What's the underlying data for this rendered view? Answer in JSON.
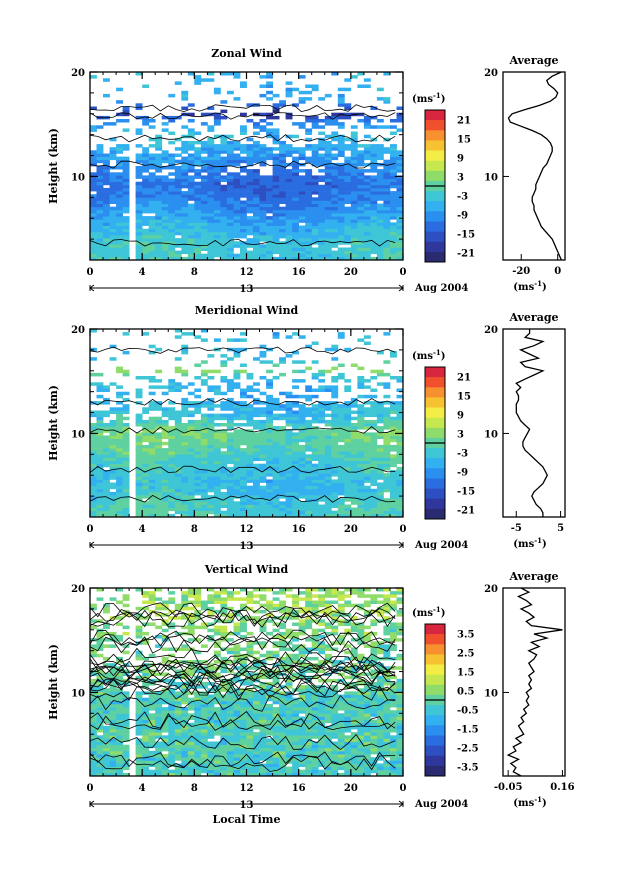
{
  "colorbar_wind": {
    "unit": "(ms",
    "unit_exp": "-1",
    "unit_close": ")",
    "ticks": [
      "21",
      "15",
      "9",
      "3",
      "-3",
      "-9",
      "-15",
      "-21"
    ],
    "colors": [
      "#d7263d",
      "#f0502c",
      "#f7902f",
      "#f7c232",
      "#f4ed45",
      "#c6e84e",
      "#8fdc6a",
      "#5fd1a0",
      "#3fc6d6",
      "#33b0f0",
      "#2b8ff0",
      "#2a6de0",
      "#2e4fc2",
      "#2f379c",
      "#2a2a70"
    ]
  },
  "colorbar_vertical": {
    "unit": "(ms",
    "unit_exp": "-1",
    "unit_close": ")",
    "ticks": [
      "3.5",
      "2.5",
      "1.5",
      "0.5",
      "-0.5",
      "-1.5",
      "-2.5",
      "-3.5"
    ],
    "colors": [
      "#d7263d",
      "#f0502c",
      "#f7902f",
      "#f7c232",
      "#f4ed45",
      "#c6e84e",
      "#8fdc6a",
      "#5fd1a0",
      "#3fc6d6",
      "#33b0f0",
      "#2b8ff0",
      "#2a6de0",
      "#2e4fc2",
      "#2f379c",
      "#2a2a70"
    ]
  },
  "chart_data": [
    {
      "type": "heatmap",
      "title": "Zonal Wind",
      "ylabel": "Height (km)",
      "ylim": [
        2,
        20
      ],
      "yticks": [
        "20",
        "10"
      ],
      "xticks": [
        "0",
        "4",
        "8",
        "12",
        "16",
        "20",
        "0"
      ],
      "x_sub_label": "13",
      "date_label": "Aug 2004",
      "xlim": [
        0,
        24
      ],
      "gap_hour": 3,
      "profile_by_height": [
        {
          "h": 3,
          "v": -3
        },
        {
          "h": 4,
          "v": -4
        },
        {
          "h": 5,
          "v": -6
        },
        {
          "h": 6,
          "v": -8
        },
        {
          "h": 7,
          "v": -10
        },
        {
          "h": 8,
          "v": -12
        },
        {
          "h": 9,
          "v": -13
        },
        {
          "h": 10,
          "v": -12
        },
        {
          "h": 11,
          "v": -10
        },
        {
          "h": 12,
          "v": -8
        },
        {
          "h": 13,
          "v": -6
        },
        {
          "h": 14,
          "v": -5
        },
        {
          "h": 15,
          "v": -10
        },
        {
          "h": 16,
          "v": -20
        },
        {
          "h": 17,
          "v": -8
        },
        {
          "h": 18,
          "v": -6
        }
      ]
    },
    {
      "type": "line",
      "title": "Average",
      "panel": "zonal",
      "ylim": [
        2,
        20
      ],
      "yticks": [
        "20",
        "10"
      ],
      "xticks": [
        "-20",
        "0"
      ],
      "xlim": [
        -30,
        4
      ],
      "xunit": "(ms",
      "xunit_exp": "-1",
      "x": [
        2,
        1,
        0,
        -1,
        -2,
        -3,
        -5,
        -7,
        -9,
        -10,
        -11,
        -12,
        -13,
        -13,
        -14,
        -14,
        -13,
        -12,
        -12,
        -11,
        -10,
        -9,
        -8,
        -6,
        -5,
        -4,
        -3,
        -3,
        -4,
        -6,
        -9,
        -14,
        -20,
        -26,
        -27,
        -25,
        -18,
        -10,
        -4,
        -1,
        0,
        -2,
        -5,
        -6,
        -3,
        2
      ],
      "y": [
        2,
        2.4,
        2.8,
        3.2,
        3.6,
        4,
        4.4,
        4.8,
        5.2,
        5.6,
        6,
        6.4,
        6.8,
        7.2,
        7.6,
        8,
        8.4,
        8.8,
        9.2,
        9.6,
        10,
        10.4,
        10.8,
        11.2,
        11.6,
        12,
        12.4,
        12.8,
        13.2,
        13.6,
        14,
        14.4,
        14.8,
        15.2,
        15.6,
        16,
        16.4,
        16.8,
        17.2,
        17.6,
        18,
        18.4,
        18.8,
        19.2,
        19.6,
        20
      ]
    },
    {
      "type": "heatmap",
      "title": "Meridional Wind",
      "ylabel": "Height (km)",
      "ylim": [
        2,
        20
      ],
      "yticks": [
        "20",
        "10"
      ],
      "xticks": [
        "0",
        "4",
        "8",
        "12",
        "16",
        "20",
        "0"
      ],
      "x_sub_label": "13",
      "date_label": "Aug 2004",
      "xlim": [
        0,
        24
      ],
      "gap_hour": 3,
      "profile_by_height": [
        {
          "h": 3,
          "v": -2
        },
        {
          "h": 4,
          "v": -4
        },
        {
          "h": 5,
          "v": -5
        },
        {
          "h": 6,
          "v": -4
        },
        {
          "h": 7,
          "v": -3
        },
        {
          "h": 8,
          "v": -1
        },
        {
          "h": 9,
          "v": 0
        },
        {
          "h": 10,
          "v": 1
        },
        {
          "h": 11,
          "v": -3
        },
        {
          "h": 12,
          "v": -5
        },
        {
          "h": 13,
          "v": -6
        },
        {
          "h": 14,
          "v": -6
        },
        {
          "h": 15,
          "v": -5
        },
        {
          "h": 16,
          "v": 3
        },
        {
          "h": 17,
          "v": -4
        },
        {
          "h": 18,
          "v": -5
        }
      ]
    },
    {
      "type": "line",
      "title": "Average",
      "panel": "meridional",
      "ylim": [
        2,
        20
      ],
      "yticks": [
        "20",
        "10"
      ],
      "xticks": [
        "-5",
        "5"
      ],
      "xlim": [
        -8,
        6
      ],
      "xunit": "(ms",
      "xunit_exp": "-1",
      "x": [
        1,
        1,
        0.5,
        -0.5,
        -1,
        -1.5,
        -1,
        0,
        1,
        1.5,
        2,
        1.5,
        1,
        0,
        -1,
        -2,
        -3,
        -3.5,
        -3.5,
        -3,
        -2.5,
        -2,
        -3,
        -4,
        -4.5,
        -5,
        -5,
        -5,
        -4.5,
        -4.5,
        -5,
        -4,
        -5,
        -3,
        -1,
        1,
        -3,
        -4,
        0,
        -2,
        -4,
        -1,
        1,
        -3,
        -2,
        -2
      ],
      "y": [
        2,
        2.4,
        2.8,
        3.2,
        3.6,
        4,
        4.4,
        4.8,
        5.2,
        5.6,
        6,
        6.4,
        6.8,
        7.2,
        7.6,
        8,
        8.4,
        8.8,
        9.2,
        9.6,
        10,
        10.4,
        10.8,
        11.2,
        11.6,
        12,
        12.4,
        12.8,
        13.2,
        13.6,
        14,
        14.4,
        14.8,
        15.2,
        15.6,
        16,
        16.4,
        16.8,
        17.2,
        17.6,
        18,
        18.4,
        18.8,
        19.2,
        19.6,
        20
      ]
    },
    {
      "type": "heatmap",
      "title": "Vertical Wind",
      "ylabel": "Height (km)",
      "xlabel": "Local Time",
      "ylim": [
        2,
        20
      ],
      "yticks": [
        "20",
        "10"
      ],
      "xticks": [
        "0",
        "4",
        "8",
        "12",
        "16",
        "20",
        "0"
      ],
      "x_sub_label": "13",
      "date_label": "Aug 2004",
      "xlim": [
        0,
        24
      ],
      "gap_hour": 3,
      "profile_by_height": [
        {
          "h": 3,
          "v": -0.3
        },
        {
          "h": 6,
          "v": -0.2
        },
        {
          "h": 9,
          "v": -0.3
        },
        {
          "h": 12,
          "v": 0.1
        },
        {
          "h": 15,
          "v": 0.2
        },
        {
          "h": 18,
          "v": 0.6
        }
      ]
    },
    {
      "type": "line",
      "title": "Average",
      "panel": "vertical",
      "ylim": [
        2,
        20
      ],
      "yticks": [
        "20",
        "10"
      ],
      "xticks": [
        "-0.05",
        "0.16"
      ],
      "xlim": [
        -0.07,
        0.17
      ],
      "xunit": "(ms",
      "xunit_exp": "-1",
      "x": [
        0,
        -0.03,
        -0.02,
        -0.04,
        -0.01,
        -0.05,
        -0.02,
        -0.03,
        0.0,
        -0.02,
        0.01,
        0.0,
        -0.01,
        0.01,
        0.0,
        0.02,
        0.01,
        0.03,
        0.02,
        0.03,
        0.02,
        0.04,
        0.03,
        0.04,
        0.03,
        0.05,
        0.04,
        0.03,
        0.05,
        0.06,
        0.03,
        0.07,
        0.04,
        0.1,
        0.05,
        0.16,
        0.04,
        0.02,
        0.05,
        0.03,
        0.0,
        0.04,
        0.02,
        -0.01,
        0.03,
        0.0
      ],
      "y": [
        2,
        2.4,
        2.8,
        3.2,
        3.6,
        4,
        4.4,
        4.8,
        5.2,
        5.6,
        6,
        6.4,
        6.8,
        7.2,
        7.6,
        8,
        8.4,
        8.8,
        9.2,
        9.6,
        10,
        10.4,
        10.8,
        11.2,
        11.6,
        12,
        12.4,
        12.8,
        13.2,
        13.6,
        14,
        14.4,
        14.8,
        15.2,
        15.6,
        16,
        16.4,
        16.8,
        17.2,
        17.6,
        18,
        18.4,
        18.8,
        19.2,
        19.6,
        20
      ]
    }
  ]
}
